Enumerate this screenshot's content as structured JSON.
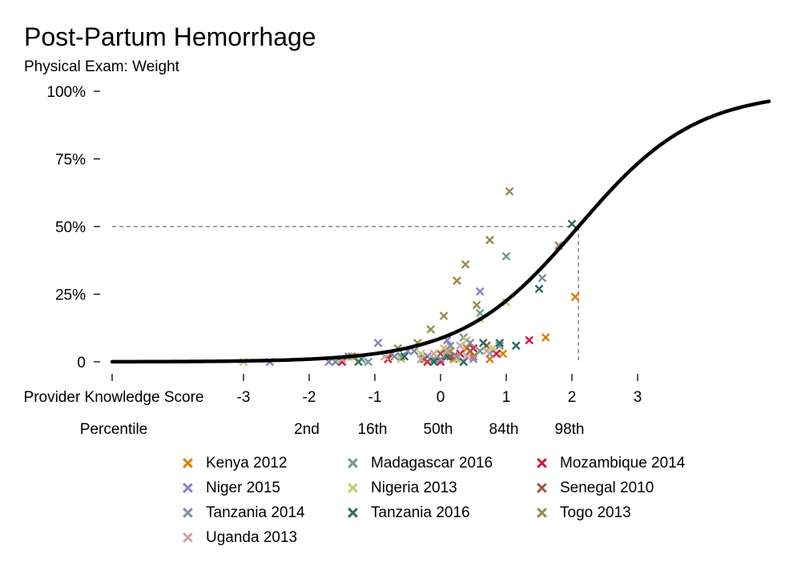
{
  "title": "Post-Partum Hemorrhage",
  "subtitle": "Physical Exam: Weight",
  "chart_data": {
    "type": "scatter",
    "title": "Post-Partum Hemorrhage",
    "subtitle": "Physical Exam: Weight",
    "x_axis_label": "Provider Knowledge Score",
    "x_ticks": [
      -3,
      -2,
      -1,
      0,
      1,
      2,
      3
    ],
    "x_tick_labels": [
      "-3",
      "-2",
      "-1",
      "0",
      "1",
      "2",
      "3"
    ],
    "xlim": [
      -5,
      5
    ],
    "percentile_label": "Percentile",
    "percentile_ticks": [
      {
        "x": -2,
        "label": "2nd"
      },
      {
        "x": -1,
        "label": "16th"
      },
      {
        "x": 0,
        "label": "50th"
      },
      {
        "x": 1,
        "label": "84th"
      },
      {
        "x": 2,
        "label": "98th"
      }
    ],
    "y_ticks": [
      0,
      25,
      50,
      75,
      100
    ],
    "y_tick_labels": [
      "0",
      "25%",
      "50%",
      "75%",
      "100%"
    ],
    "ylim": [
      0,
      100
    ],
    "curve": {
      "type": "logistic",
      "midpoint_x": 2.1,
      "steepness": 1.12
    },
    "reference_line": {
      "x": 2.1,
      "y": 50
    },
    "legend_position": "bottom",
    "series": [
      {
        "name": "Kenya 2012",
        "color": "#e07b00",
        "points": [
          [
            2.05,
            24
          ],
          [
            1.6,
            9
          ],
          [
            0.75,
            1
          ],
          [
            0.95,
            3
          ],
          [
            0.4,
            5
          ],
          [
            0.5,
            2
          ],
          [
            0.2,
            1
          ]
        ]
      },
      {
        "name": "Madagascar 2016",
        "color": "#6a9a8c",
        "points": [
          [
            1.0,
            39
          ],
          [
            0.6,
            18
          ],
          [
            0.35,
            9
          ],
          [
            0.1,
            3
          ],
          [
            -0.1,
            1
          ],
          [
            -1.6,
            0
          ],
          [
            -1.2,
            1
          ],
          [
            0.9,
            6
          ],
          [
            0.6,
            4
          ],
          [
            -0.6,
            2
          ]
        ]
      },
      {
        "name": "Mozambique 2014",
        "color": "#d7193c",
        "points": [
          [
            1.35,
            8
          ],
          [
            0.85,
            3
          ],
          [
            0.5,
            5
          ],
          [
            0.2,
            2
          ],
          [
            -0.2,
            0
          ],
          [
            -1.5,
            0
          ],
          [
            -0.8,
            1
          ],
          [
            0.0,
            0
          ],
          [
            0.3,
            3
          ]
        ]
      },
      {
        "name": "Niger 2015",
        "color": "#9080c8",
        "points": [
          [
            -2.6,
            0
          ],
          [
            0.6,
            26
          ],
          [
            -0.95,
            7
          ],
          [
            -0.5,
            4
          ],
          [
            0.1,
            8
          ],
          [
            -0.2,
            2
          ],
          [
            0.5,
            1
          ],
          [
            -1.7,
            0
          ],
          [
            -1.4,
            2
          ]
        ]
      },
      {
        "name": "Nigeria 2013",
        "color": "#c9c87a",
        "points": [
          [
            -3.0,
            0
          ],
          [
            0.6,
            16
          ],
          [
            1.0,
            22
          ],
          [
            0.8,
            5
          ],
          [
            0.4,
            8
          ],
          [
            0.05,
            5
          ],
          [
            -0.3,
            3
          ],
          [
            -0.6,
            1
          ],
          [
            -1.3,
            2
          ],
          [
            0.25,
            1
          ]
        ]
      },
      {
        "name": "Senegal 2010",
        "color": "#a05a3c",
        "points": [
          [
            0.45,
            4
          ],
          [
            0.15,
            2
          ],
          [
            -0.25,
            1
          ],
          [
            -0.75,
            3
          ],
          [
            0.7,
            6
          ],
          [
            0.0,
            3
          ]
        ]
      },
      {
        "name": "Tanzania 2014",
        "color": "#7f8ea8",
        "points": [
          [
            1.55,
            31
          ],
          [
            0.25,
            2
          ],
          [
            0.0,
            1
          ],
          [
            -0.4,
            4
          ],
          [
            -0.7,
            2
          ],
          [
            0.75,
            3
          ],
          [
            -1.1,
            0
          ],
          [
            0.45,
            7
          ],
          [
            0.15,
            6
          ]
        ]
      },
      {
        "name": "Tanzania 2016",
        "color": "#2f6a60",
        "points": [
          [
            2.0,
            51
          ],
          [
            1.5,
            27
          ],
          [
            0.65,
            7
          ],
          [
            0.35,
            0
          ],
          [
            -0.1,
            0
          ],
          [
            0.1,
            2
          ],
          [
            -1.25,
            0
          ],
          [
            -0.55,
            2
          ],
          [
            1.15,
            6
          ],
          [
            0.9,
            7
          ]
        ]
      },
      {
        "name": "Togo 2013",
        "color": "#9a8a4e",
        "points": [
          [
            1.05,
            63
          ],
          [
            0.75,
            45
          ],
          [
            0.38,
            36
          ],
          [
            0.25,
            30
          ],
          [
            0.05,
            17
          ],
          [
            -0.15,
            12
          ],
          [
            0.55,
            21
          ],
          [
            -0.35,
            7
          ],
          [
            -0.65,
            5
          ],
          [
            -1.35,
            2
          ],
          [
            1.8,
            43
          ],
          [
            0.15,
            4
          ]
        ]
      },
      {
        "name": "Uganda 2013",
        "color": "#c8a8a0",
        "points": [
          [
            -0.3,
            1
          ],
          [
            0.1,
            4
          ],
          [
            0.4,
            2
          ],
          [
            -0.85,
            2
          ],
          [
            0.7,
            4
          ],
          [
            -0.1,
            3
          ],
          [
            -1.5,
            1
          ],
          [
            0.3,
            6
          ]
        ]
      }
    ]
  }
}
